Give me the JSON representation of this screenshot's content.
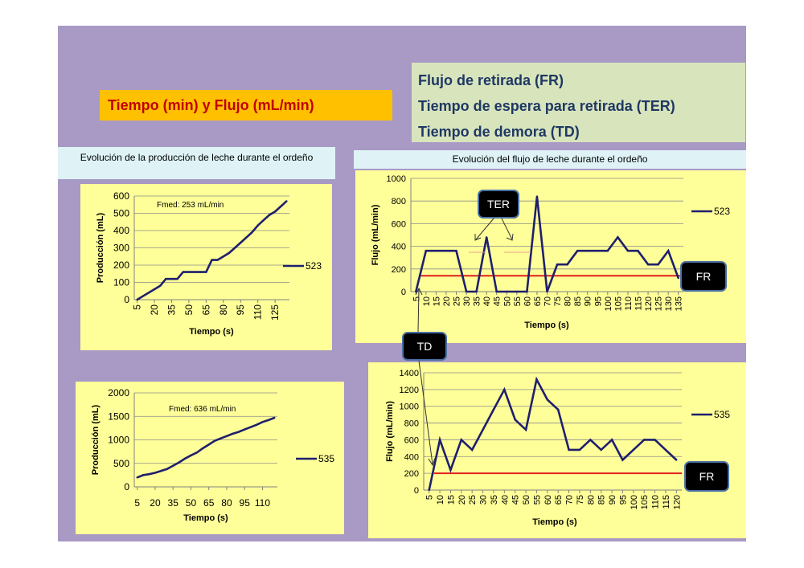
{
  "header": {
    "title": "Tiempo (min) y Flujo (mL/min)",
    "definitions": [
      "Flujo de retirada (FR)",
      "Tiempo de espera para retirada (TER)",
      "Tiempo de demora (TD)"
    ]
  },
  "captions": {
    "production": "Evolución de la producción de leche durante el ordeño",
    "flow": "Evolución del flujo de leche durante el ordeño"
  },
  "labels": {
    "ter": "TER",
    "td": "TD",
    "fr_top": "FR",
    "fr_bottom": "FR"
  },
  "colors": {
    "series": "#1f1f6e",
    "threshold": "#e02020",
    "panel": "#ffff99"
  },
  "chart_data": [
    {
      "type": "line",
      "id": "prod523",
      "annotation": "Fmed:  253 mL/min",
      "xlabel": "Tiempo (s)",
      "ylabel": "Producción (mL)",
      "ylim": [
        0,
        600
      ],
      "yticks": [
        0,
        100,
        200,
        300,
        400,
        500,
        600
      ],
      "xticks": [
        "5",
        "20",
        "35",
        "50",
        "65",
        "80",
        "95",
        "110",
        "125"
      ],
      "x": [
        5,
        10,
        15,
        20,
        25,
        30,
        35,
        40,
        45,
        50,
        55,
        60,
        65,
        70,
        75,
        80,
        85,
        90,
        95,
        100,
        105,
        110,
        115,
        120,
        125,
        130,
        135
      ],
      "series": [
        {
          "name": "523",
          "values": [
            0,
            20,
            40,
            60,
            80,
            120,
            120,
            120,
            160,
            160,
            160,
            160,
            160,
            230,
            230,
            250,
            270,
            300,
            330,
            360,
            390,
            430,
            460,
            490,
            510,
            540,
            570
          ]
        }
      ],
      "grid": true
    },
    {
      "type": "line",
      "id": "prod535",
      "annotation": "Fmed:  636 mL/min",
      "xlabel": "Tiempo (s)",
      "ylabel": "Producción (mL)",
      "ylim": [
        0,
        2000
      ],
      "yticks": [
        0,
        500,
        1000,
        1500,
        2000
      ],
      "xticks": [
        "5",
        "20",
        "35",
        "50",
        "65",
        "80",
        "95",
        "110"
      ],
      "x": [
        5,
        10,
        15,
        20,
        25,
        30,
        35,
        40,
        45,
        50,
        55,
        60,
        65,
        70,
        75,
        80,
        85,
        90,
        95,
        100,
        105,
        110,
        115,
        120
      ],
      "series": [
        {
          "name": "535",
          "values": [
            200,
            250,
            270,
            300,
            340,
            380,
            450,
            520,
            600,
            670,
            730,
            820,
            900,
            980,
            1030,
            1080,
            1130,
            1170,
            1220,
            1270,
            1320,
            1380,
            1420,
            1470
          ]
        }
      ],
      "grid": true
    },
    {
      "type": "line",
      "id": "flow523",
      "xlabel": "Tiempo (s)",
      "ylabel": "Flujo (mL/min)",
      "ylim": [
        0,
        1000
      ],
      "yticks": [
        0,
        200,
        400,
        600,
        800,
        1000
      ],
      "x": [
        5,
        10,
        15,
        20,
        25,
        30,
        35,
        40,
        45,
        50,
        55,
        60,
        65,
        70,
        75,
        80,
        85,
        90,
        95,
        100,
        105,
        110,
        115,
        120,
        125,
        130,
        135
      ],
      "xticks": [
        "5",
        "10",
        "15",
        "20",
        "25",
        "30",
        "35",
        "40",
        "45",
        "50",
        "55",
        "60",
        "65",
        "70",
        "75",
        "80",
        "85",
        "90",
        "95",
        "100",
        "105",
        "110",
        "115",
        "120",
        "125",
        "130",
        "135"
      ],
      "series": [
        {
          "name": "523",
          "values": [
            0,
            360,
            360,
            360,
            360,
            0,
            0,
            480,
            0,
            0,
            0,
            0,
            840,
            0,
            240,
            240,
            360,
            360,
            360,
            360,
            480,
            360,
            360,
            240,
            240,
            360,
            120
          ]
        }
      ],
      "threshold": {
        "name": "FR",
        "value": 140
      },
      "grid": true
    },
    {
      "type": "line",
      "id": "flow535",
      "xlabel": "Tiempo (s)",
      "ylabel": "Flujo (mL/min)",
      "ylim": [
        0,
        1400
      ],
      "yticks": [
        0,
        200,
        400,
        600,
        800,
        1000,
        1200,
        1400
      ],
      "x": [
        5,
        10,
        15,
        20,
        25,
        30,
        35,
        40,
        45,
        50,
        55,
        60,
        65,
        70,
        75,
        80,
        85,
        90,
        95,
        100,
        105,
        110,
        115,
        120
      ],
      "xticks": [
        "5",
        "10",
        "15",
        "20",
        "25",
        "30",
        "35",
        "40",
        "45",
        "50",
        "55",
        "60",
        "65",
        "70",
        "75",
        "80",
        "85",
        "90",
        "95",
        "100",
        "105",
        "110",
        "115",
        "120"
      ],
      "series": [
        {
          "name": "535",
          "values": [
            0,
            600,
            240,
            600,
            480,
            720,
            960,
            1200,
            840,
            720,
            1320,
            1080,
            960,
            480,
            480,
            600,
            480,
            600,
            360,
            480,
            600,
            600,
            480,
            360
          ]
        }
      ],
      "threshold": {
        "name": "FR",
        "value": 200
      },
      "grid": true
    }
  ]
}
